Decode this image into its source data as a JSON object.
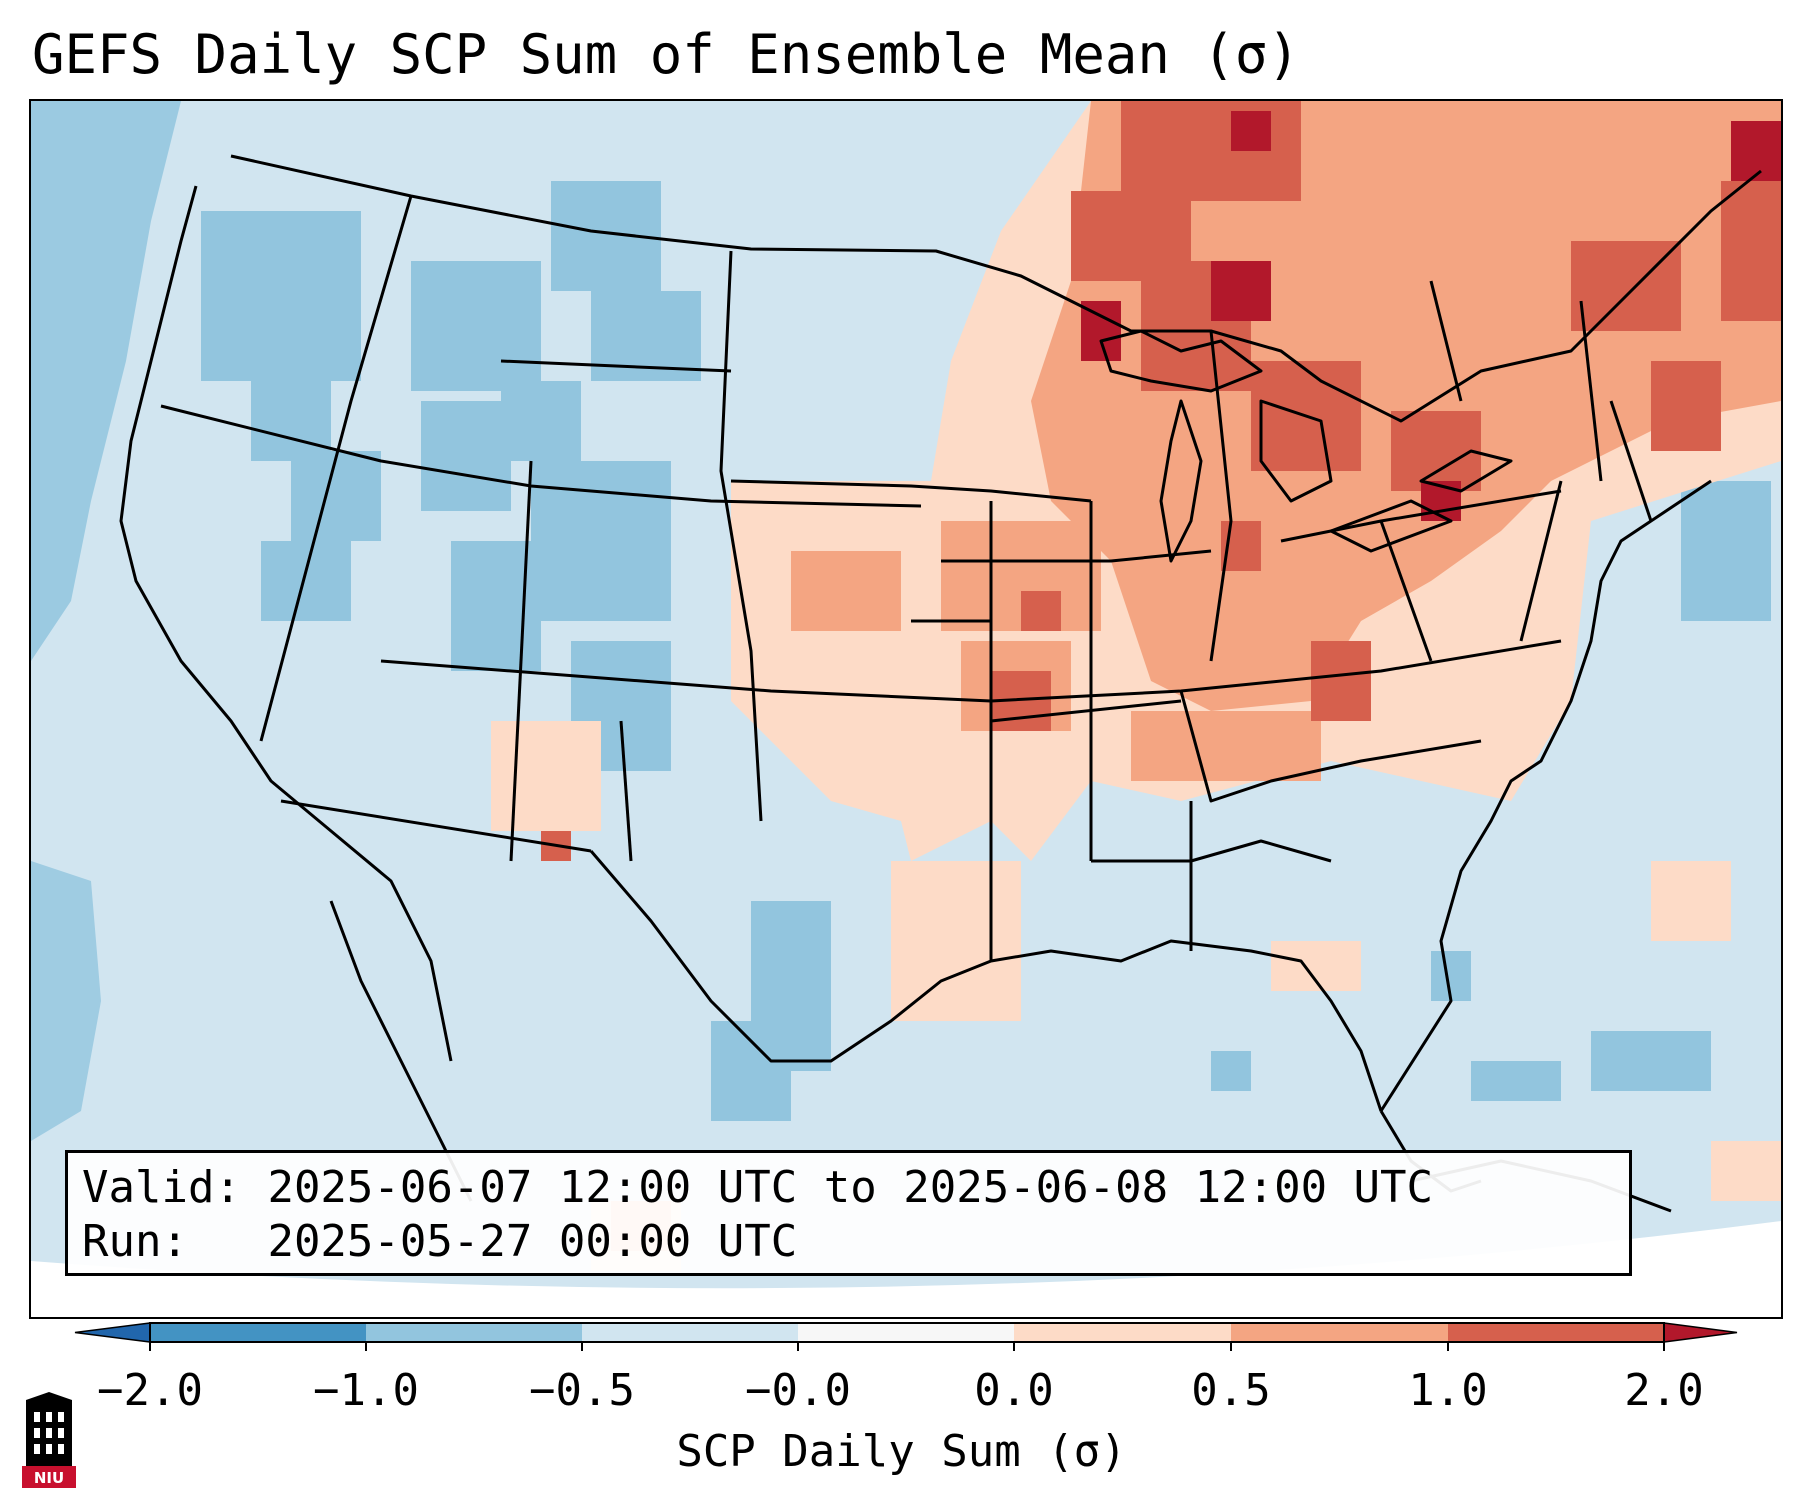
{
  "title": "GEFS Daily SCP Sum of Ensemble Mean (σ)",
  "info": {
    "valid_label": "Valid:",
    "valid_value": "2025-06-07 12:00 UTC to 2025-06-08 12:00 UTC",
    "run_label": "Run:",
    "run_value": "2025-05-27 00:00 UTC"
  },
  "colorbar": {
    "label": "SCP Daily Sum (σ)",
    "tick_labels": [
      "−2.0",
      "−1.0",
      "−0.5",
      "−0.0",
      "0.0",
      "0.5",
      "1.0",
      "2.0"
    ],
    "bins": [
      {
        "range": "< −2.0",
        "color": "#2166ac"
      },
      {
        "range": "−2.0 to −1.0",
        "color": "#4393c3"
      },
      {
        "range": "−1.0 to −0.5",
        "color": "#92c5de"
      },
      {
        "range": "−0.5 to −0.0",
        "color": "#d1e5f0"
      },
      {
        "range": "−0.0 to 0.0",
        "color": "#f7f7f7"
      },
      {
        "range": "0.0 to 0.5",
        "color": "#fddbc7"
      },
      {
        "range": "0.5 to 1.0",
        "color": "#f4a582"
      },
      {
        "range": "1.0 to 2.0",
        "color": "#d6604d"
      },
      {
        "range": "> 2.0",
        "color": "#b2182b"
      }
    ]
  },
  "logo": {
    "text": "NIU",
    "colors": {
      "primary": "#c8102e",
      "secondary": "#000000"
    }
  }
}
